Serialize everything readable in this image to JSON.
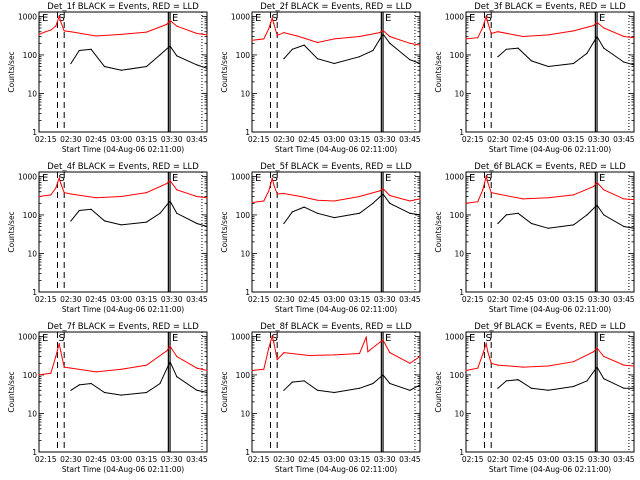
{
  "figure": {
    "xlabel": "Start Time (04-Aug-06 02:11:00)",
    "ylabel": "Counts/sec",
    "x_ticks": [
      "02:15",
      "02:30",
      "02:45",
      "03:00",
      "03:15",
      "03:30",
      "03:45"
    ],
    "y_ticks": [
      "1",
      "10",
      "100",
      "1000"
    ],
    "flags": [
      "E",
      "S",
      "E"
    ],
    "colors": {
      "events": "#000000",
      "lld": "#ff0000",
      "axes": "#000000",
      "background": "#ffffff"
    }
  },
  "chart_data": [
    {
      "type": "line",
      "title": "Det_1f BLACK = Events, RED = LLD",
      "xlabel": "Start Time (04-Aug-06 02:11:00)",
      "ylabel": "Counts/sec",
      "xlim": [
        "02:11",
        "03:51"
      ],
      "ylim": [
        1,
        1300
      ],
      "yscale": "log",
      "x_ticks": [
        "02:15",
        "02:30",
        "02:45",
        "03:00",
        "03:15",
        "03:30",
        "03:45"
      ],
      "markers": {
        "dashed": [
          "02:22",
          "02:26"
        ],
        "solid": [
          "03:28",
          "03:29"
        ],
        "dotted": [
          "03:48"
        ]
      },
      "series": [
        {
          "name": "LLD",
          "color": "#ff0000",
          "x": [
            "02:11",
            "02:15",
            "02:18",
            "02:21",
            "02:23",
            "02:24",
            "02:26",
            "02:30",
            "02:45",
            "03:00",
            "03:15",
            "03:27",
            "03:29",
            "03:33",
            "03:45",
            "03:51"
          ],
          "values": [
            340,
            400,
            440,
            560,
            1000,
            720,
            420,
            400,
            310,
            340,
            390,
            620,
            780,
            560,
            360,
            330
          ]
        },
        {
          "name": "Events",
          "color": "#000000",
          "x": [
            "02:11",
            "02:25",
            "02:30",
            "02:35",
            "02:42",
            "02:50",
            "03:00",
            "03:15",
            "03:23",
            "03:29",
            "03:33",
            "03:45",
            "03:51"
          ],
          "values": [
            0,
            0,
            60,
            130,
            140,
            50,
            40,
            50,
            100,
            170,
            95,
            55,
            45
          ]
        }
      ]
    },
    {
      "type": "line",
      "title": "Det_2f BLACK = Events, RED = LLD",
      "xlabel": "Start Time (04-Aug-06 02:11:00)",
      "ylabel": "Counts/sec",
      "xlim": [
        "02:11",
        "03:51"
      ],
      "ylim": [
        1,
        1300
      ],
      "yscale": "log",
      "x_ticks": [
        "02:15",
        "02:30",
        "02:45",
        "03:00",
        "03:15",
        "03:30",
        "03:45"
      ],
      "markers": {
        "dashed": [
          "02:22",
          "02:26"
        ],
        "solid": [
          "03:28",
          "03:29"
        ],
        "dotted": [
          "03:48"
        ]
      },
      "series": [
        {
          "name": "LLD",
          "color": "#ff0000",
          "x": [
            "02:11",
            "02:18",
            "02:21",
            "02:23",
            "02:24",
            "02:26",
            "02:30",
            "02:38",
            "02:50",
            "03:00",
            "03:15",
            "03:27",
            "03:29",
            "03:33",
            "03:45",
            "03:51"
          ],
          "values": [
            240,
            260,
            480,
            900,
            650,
            320,
            380,
            310,
            210,
            260,
            300,
            380,
            430,
            300,
            200,
            180
          ]
        },
        {
          "name": "Events",
          "color": "#000000",
          "x": [
            "02:11",
            "02:25",
            "02:30",
            "02:35",
            "02:42",
            "02:50",
            "03:00",
            "03:15",
            "03:23",
            "03:29",
            "03:33",
            "03:45",
            "03:51"
          ],
          "values": [
            0,
            0,
            80,
            140,
            180,
            80,
            60,
            90,
            130,
            350,
            200,
            75,
            60
          ]
        }
      ]
    },
    {
      "type": "line",
      "title": "Det_3f BLACK = Events, RED = LLD",
      "xlabel": "Start Time (04-Aug-06 02:11:00)",
      "ylabel": "Counts/sec",
      "xlim": [
        "02:11",
        "03:51"
      ],
      "ylim": [
        1,
        1300
      ],
      "yscale": "log",
      "x_ticks": [
        "02:15",
        "02:30",
        "02:45",
        "03:00",
        "03:15",
        "03:30",
        "03:45"
      ],
      "markers": {
        "dashed": [
          "02:22",
          "02:26"
        ],
        "solid": [
          "03:28",
          "03:29"
        ],
        "dotted": [
          "03:48"
        ]
      },
      "series": [
        {
          "name": "LLD",
          "color": "#ff0000",
          "x": [
            "02:11",
            "02:18",
            "02:21",
            "02:23",
            "02:24",
            "02:26",
            "02:30",
            "02:45",
            "03:00",
            "03:15",
            "03:27",
            "03:29",
            "03:33",
            "03:45",
            "03:51"
          ],
          "values": [
            260,
            280,
            520,
            1000,
            700,
            360,
            400,
            300,
            330,
            420,
            580,
            700,
            500,
            300,
            280
          ]
        },
        {
          "name": "Events",
          "color": "#000000",
          "x": [
            "02:11",
            "02:25",
            "02:30",
            "02:35",
            "02:42",
            "02:50",
            "03:00",
            "03:15",
            "03:23",
            "03:29",
            "03:33",
            "03:45",
            "03:51"
          ],
          "values": [
            0,
            0,
            90,
            140,
            150,
            70,
            50,
            60,
            110,
            300,
            150,
            65,
            55
          ]
        }
      ]
    },
    {
      "type": "line",
      "title": "Det_4f BLACK = Events, RED = LLD",
      "xlabel": "Start Time (04-Aug-06 02:11:00)",
      "ylabel": "Counts/sec",
      "xlim": [
        "02:11",
        "03:51"
      ],
      "ylim": [
        1,
        1300
      ],
      "yscale": "log",
      "x_ticks": [
        "02:15",
        "02:30",
        "02:45",
        "03:00",
        "03:15",
        "03:30",
        "03:45"
      ],
      "markers": {
        "dashed": [
          "02:22",
          "02:26"
        ],
        "solid": [
          "03:28",
          "03:29"
        ],
        "dotted": [
          "03:48"
        ]
      },
      "series": [
        {
          "name": "LLD",
          "color": "#ff0000",
          "x": [
            "02:11",
            "02:18",
            "02:21",
            "02:23",
            "02:24",
            "02:26",
            "02:30",
            "02:45",
            "03:00",
            "03:15",
            "03:27",
            "03:29",
            "03:33",
            "03:45",
            "03:51"
          ],
          "values": [
            300,
            330,
            500,
            900,
            650,
            380,
            350,
            280,
            300,
            380,
            650,
            780,
            450,
            300,
            280
          ]
        },
        {
          "name": "Events",
          "color": "#000000",
          "x": [
            "02:11",
            "02:25",
            "02:30",
            "02:35",
            "02:42",
            "02:50",
            "03:00",
            "03:15",
            "03:23",
            "03:29",
            "03:33",
            "03:45",
            "03:51"
          ],
          "values": [
            0,
            0,
            70,
            130,
            140,
            70,
            55,
            65,
            110,
            230,
            110,
            60,
            50
          ]
        }
      ]
    },
    {
      "type": "line",
      "title": "Det_5f BLACK = Events, RED = LLD",
      "xlabel": "Start Time (04-Aug-06 02:11:00)",
      "ylabel": "Counts/sec",
      "xlim": [
        "02:11",
        "03:51"
      ],
      "ylim": [
        1,
        1300
      ],
      "yscale": "log",
      "x_ticks": [
        "02:15",
        "02:30",
        "02:45",
        "03:00",
        "03:15",
        "03:30",
        "03:45"
      ],
      "markers": {
        "dashed": [
          "02:22",
          "02:26"
        ],
        "solid": [
          "03:28",
          "03:29"
        ],
        "dotted": [
          "03:48"
        ]
      },
      "series": [
        {
          "name": "LLD",
          "color": "#ff0000",
          "x": [
            "02:11",
            "02:18",
            "02:21",
            "02:23",
            "02:24",
            "02:26",
            "02:30",
            "02:40",
            "02:50",
            "03:00",
            "03:15",
            "03:27",
            "03:29",
            "03:33",
            "03:45",
            "03:51"
          ],
          "values": [
            210,
            230,
            420,
            900,
            600,
            350,
            360,
            300,
            240,
            230,
            300,
            420,
            480,
            320,
            230,
            260
          ]
        },
        {
          "name": "Events",
          "color": "#000000",
          "x": [
            "02:11",
            "02:25",
            "02:30",
            "02:35",
            "02:42",
            "02:50",
            "03:00",
            "03:15",
            "03:23",
            "03:29",
            "03:33",
            "03:45",
            "03:51"
          ],
          "values": [
            0,
            0,
            60,
            120,
            160,
            110,
            85,
            110,
            200,
            350,
            200,
            110,
            100
          ]
        }
      ]
    },
    {
      "type": "line",
      "title": "Det_6f BLACK = Events, RED = LLD",
      "xlabel": "Start Time (04-Aug-06 02:11:00)",
      "ylabel": "Counts/sec",
      "xlim": [
        "02:11",
        "03:51"
      ],
      "ylim": [
        1,
        1300
      ],
      "yscale": "log",
      "x_ticks": [
        "02:15",
        "02:30",
        "02:45",
        "03:00",
        "03:15",
        "03:30",
        "03:45"
      ],
      "markers": {
        "dashed": [
          "02:22",
          "02:26"
        ],
        "solid": [
          "03:28",
          "03:29"
        ],
        "dotted": [
          "03:48"
        ]
      },
      "series": [
        {
          "name": "LLD",
          "color": "#ff0000",
          "x": [
            "02:11",
            "02:18",
            "02:21",
            "02:23",
            "02:24",
            "02:26",
            "02:30",
            "02:45",
            "03:00",
            "03:15",
            "03:27",
            "03:29",
            "03:33",
            "03:45",
            "03:51"
          ],
          "values": [
            200,
            220,
            450,
            1000,
            700,
            380,
            350,
            260,
            280,
            330,
            550,
            700,
            450,
            260,
            250
          ]
        },
        {
          "name": "Events",
          "color": "#000000",
          "x": [
            "02:11",
            "02:25",
            "02:30",
            "02:35",
            "02:42",
            "02:50",
            "03:00",
            "03:15",
            "03:23",
            "03:29",
            "03:33",
            "03:45",
            "03:51"
          ],
          "values": [
            0,
            0,
            60,
            100,
            110,
            60,
            45,
            55,
            100,
            180,
            100,
            50,
            45
          ]
        }
      ]
    },
    {
      "type": "line",
      "title": "Det_7f BLACK = Events, RED = LLD",
      "xlabel": "Start Time (04-Aug-06 02:11:00)",
      "ylabel": "Counts/sec",
      "xlim": [
        "02:11",
        "03:51"
      ],
      "ylim": [
        1,
        1300
      ],
      "yscale": "log",
      "x_ticks": [
        "02:15",
        "02:30",
        "02:45",
        "03:00",
        "03:15",
        "03:30",
        "03:45"
      ],
      "markers": {
        "dashed": [
          "02:22",
          "02:26"
        ],
        "solid": [
          "03:28",
          "03:29"
        ],
        "dotted": [
          "03:48"
        ]
      },
      "series": [
        {
          "name": "LLD",
          "color": "#ff0000",
          "x": [
            "02:11",
            "02:18",
            "02:21",
            "02:23",
            "02:24",
            "02:26",
            "02:30",
            "02:45",
            "03:00",
            "03:15",
            "03:27",
            "03:29",
            "03:33",
            "03:45",
            "03:51"
          ],
          "values": [
            100,
            110,
            300,
            650,
            400,
            160,
            150,
            120,
            140,
            180,
            420,
            560,
            300,
            150,
            130
          ]
        },
        {
          "name": "Events",
          "color": "#000000",
          "x": [
            "02:11",
            "02:25",
            "02:30",
            "02:35",
            "02:42",
            "02:50",
            "03:00",
            "03:15",
            "03:23",
            "03:29",
            "03:33",
            "03:45",
            "03:51"
          ],
          "values": [
            0,
            0,
            40,
            55,
            60,
            35,
            30,
            35,
            60,
            220,
            90,
            40,
            35
          ]
        }
      ]
    },
    {
      "type": "line",
      "title": "Det_8f BLACK = Events, RED = LLD",
      "xlabel": "Start Time (04-Aug-06 02:11:00)",
      "ylabel": "Counts/sec",
      "xlim": [
        "02:11",
        "03:51"
      ],
      "ylim": [
        1,
        1300
      ],
      "yscale": "log",
      "x_ticks": [
        "02:15",
        "02:30",
        "02:45",
        "03:00",
        "03:15",
        "03:30",
        "03:45"
      ],
      "markers": {
        "dashed": [
          "02:22",
          "02:26"
        ],
        "solid": [
          "03:28",
          "03:29"
        ],
        "dotted": [
          "03:48"
        ]
      },
      "series": [
        {
          "name": "LLD",
          "color": "#ff0000",
          "x": [
            "02:11",
            "02:18",
            "02:21",
            "02:23",
            "02:24",
            "02:26",
            "02:30",
            "02:45",
            "03:00",
            "03:15",
            "03:19",
            "03:20",
            "03:27",
            "03:29",
            "03:33",
            "03:45",
            "03:51"
          ],
          "values": [
            130,
            140,
            500,
            1000,
            700,
            250,
            380,
            320,
            330,
            360,
            950,
            400,
            700,
            800,
            380,
            200,
            300
          ]
        },
        {
          "name": "Events",
          "color": "#000000",
          "x": [
            "02:11",
            "02:25",
            "02:30",
            "02:35",
            "02:42",
            "02:50",
            "03:00",
            "03:15",
            "03:23",
            "03:29",
            "03:33",
            "03:45",
            "03:51"
          ],
          "values": [
            0,
            0,
            40,
            65,
            70,
            40,
            35,
            45,
            60,
            100,
            60,
            40,
            55
          ]
        }
      ]
    },
    {
      "type": "line",
      "title": "Det_9f BLACK = Events, RED = LLD",
      "xlabel": "Start Time (04-Aug-06 02:11:00)",
      "ylabel": "Counts/sec",
      "xlim": [
        "02:11",
        "03:51"
      ],
      "ylim": [
        1,
        1300
      ],
      "yscale": "log",
      "x_ticks": [
        "02:15",
        "02:30",
        "02:45",
        "03:00",
        "03:15",
        "03:30",
        "03:45"
      ],
      "markers": {
        "dashed": [
          "02:22",
          "02:26"
        ],
        "solid": [
          "03:28",
          "03:29"
        ],
        "dotted": [
          "03:48"
        ]
      },
      "series": [
        {
          "name": "LLD",
          "color": "#ff0000",
          "x": [
            "02:11",
            "02:18",
            "02:21",
            "02:23",
            "02:24",
            "02:26",
            "02:30",
            "02:45",
            "03:00",
            "03:15",
            "03:27",
            "03:29",
            "03:33",
            "03:45",
            "03:51"
          ],
          "values": [
            130,
            150,
            350,
            650,
            400,
            200,
            180,
            160,
            170,
            220,
            400,
            500,
            300,
            180,
            170
          ]
        },
        {
          "name": "Events",
          "color": "#000000",
          "x": [
            "02:11",
            "02:25",
            "02:30",
            "02:35",
            "02:42",
            "02:50",
            "03:00",
            "03:15",
            "03:23",
            "03:29",
            "03:33",
            "03:45",
            "03:51"
          ],
          "values": [
            0,
            0,
            45,
            70,
            75,
            45,
            40,
            50,
            70,
            160,
            80,
            45,
            45
          ]
        }
      ]
    }
  ]
}
